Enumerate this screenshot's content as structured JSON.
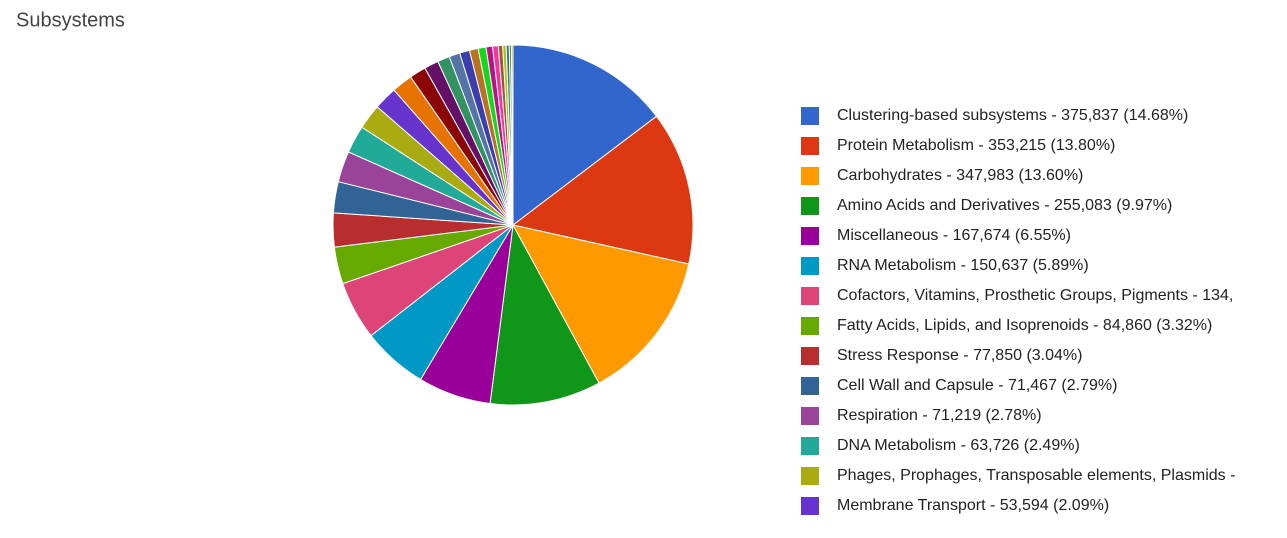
{
  "chart_data": {
    "type": "pie",
    "title": "Subsystems",
    "legend_separator": " - ",
    "categories": [
      "Clustering-based subsystems",
      "Protein Metabolism",
      "Carbohydrates",
      "Amino Acids and Derivatives",
      "Miscellaneous",
      "RNA Metabolism",
      "Cofactors, Vitamins, Prosthetic Groups, Pigments",
      "Fatty Acids, Lipids, and Isoprenoids",
      "Stress Response",
      "Cell Wall and Capsule",
      "Respiration",
      "DNA Metabolism",
      "Phages, Prophages, Transposable elements, Plasmids",
      "Membrane Transport",
      null,
      null,
      null,
      null,
      null,
      null,
      null,
      null,
      null,
      null,
      null,
      null,
      null,
      null,
      null
    ],
    "values": [
      375837,
      353215,
      347983,
      255083,
      167674,
      150637,
      134500,
      84860,
      77850,
      71467,
      71219,
      63726,
      58000,
      53594,
      48000,
      38000,
      33000,
      28000,
      25000,
      23000,
      20000,
      18000,
      15000,
      13000,
      10000,
      8000,
      7000,
      5000,
      3500
    ],
    "value_labels": [
      "375,837 (14.68%)",
      "353,215 (13.80%)",
      "347,983 (13.60%)",
      "255,083 (9.97%)",
      "167,674 (6.55%)",
      "150,637 (5.89%)",
      "134,",
      "84,860 (3.32%)",
      "77,850 (3.04%)",
      "71,467 (2.79%)",
      "71,219 (2.78%)",
      "63,726 (2.49%)",
      null,
      "53,594 (2.09%)",
      null,
      null,
      null,
      null,
      null,
      null,
      null,
      null,
      null,
      null,
      null,
      null,
      null,
      null,
      null
    ],
    "colors": [
      "#3366cc",
      "#dc3912",
      "#ff9900",
      "#109618",
      "#990099",
      "#0099c6",
      "#dd4477",
      "#66aa00",
      "#b82e2e",
      "#316395",
      "#994499",
      "#22aa99",
      "#aaaa11",
      "#6633cc",
      "#e67300",
      "#8b0707",
      "#651067",
      "#329262",
      "#5574a6",
      "#3b3eac",
      "#b77322",
      "#16d620",
      "#b91383",
      "#f4359e",
      "#9c5935",
      "#a9c413",
      "#2a778d",
      "#668d1c",
      "#bea413"
    ],
    "legend": "right"
  }
}
